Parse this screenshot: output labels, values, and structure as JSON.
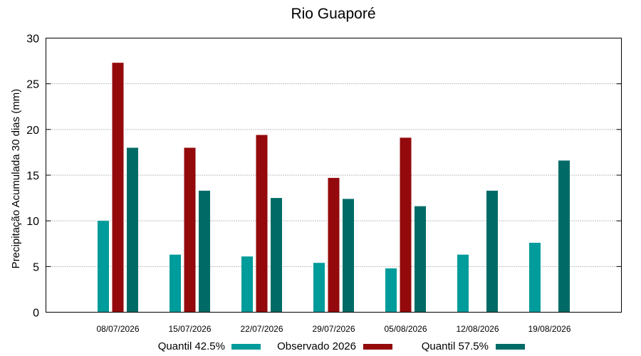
{
  "chart_data": {
    "type": "bar",
    "title": "Rio Guaporé",
    "xlabel": "",
    "ylabel": "Precipitação Acumulada 30 dias (mm)",
    "ylim": [
      0,
      30
    ],
    "yticks": [
      0,
      5,
      10,
      15,
      20,
      25,
      30
    ],
    "grid": true,
    "legend_position": "bottom",
    "categories": [
      "08/07/2026",
      "15/07/2026",
      "22/07/2026",
      "29/07/2026",
      "05/08/2026",
      "12/08/2026",
      "19/08/2026"
    ],
    "series": [
      {
        "name": "Quantil 42.5%",
        "color": "#009b9b",
        "values": [
          10.0,
          6.3,
          6.1,
          5.4,
          4.8,
          6.3,
          7.6
        ]
      },
      {
        "name": "Observado 2026",
        "color": "#940a0c",
        "values": [
          27.3,
          18.0,
          19.4,
          14.7,
          19.1,
          null,
          null
        ]
      },
      {
        "name": "Quantil 57.5%",
        "color": "#006b66",
        "values": [
          18.0,
          13.3,
          12.5,
          12.4,
          11.6,
          13.3,
          16.6
        ]
      }
    ]
  }
}
